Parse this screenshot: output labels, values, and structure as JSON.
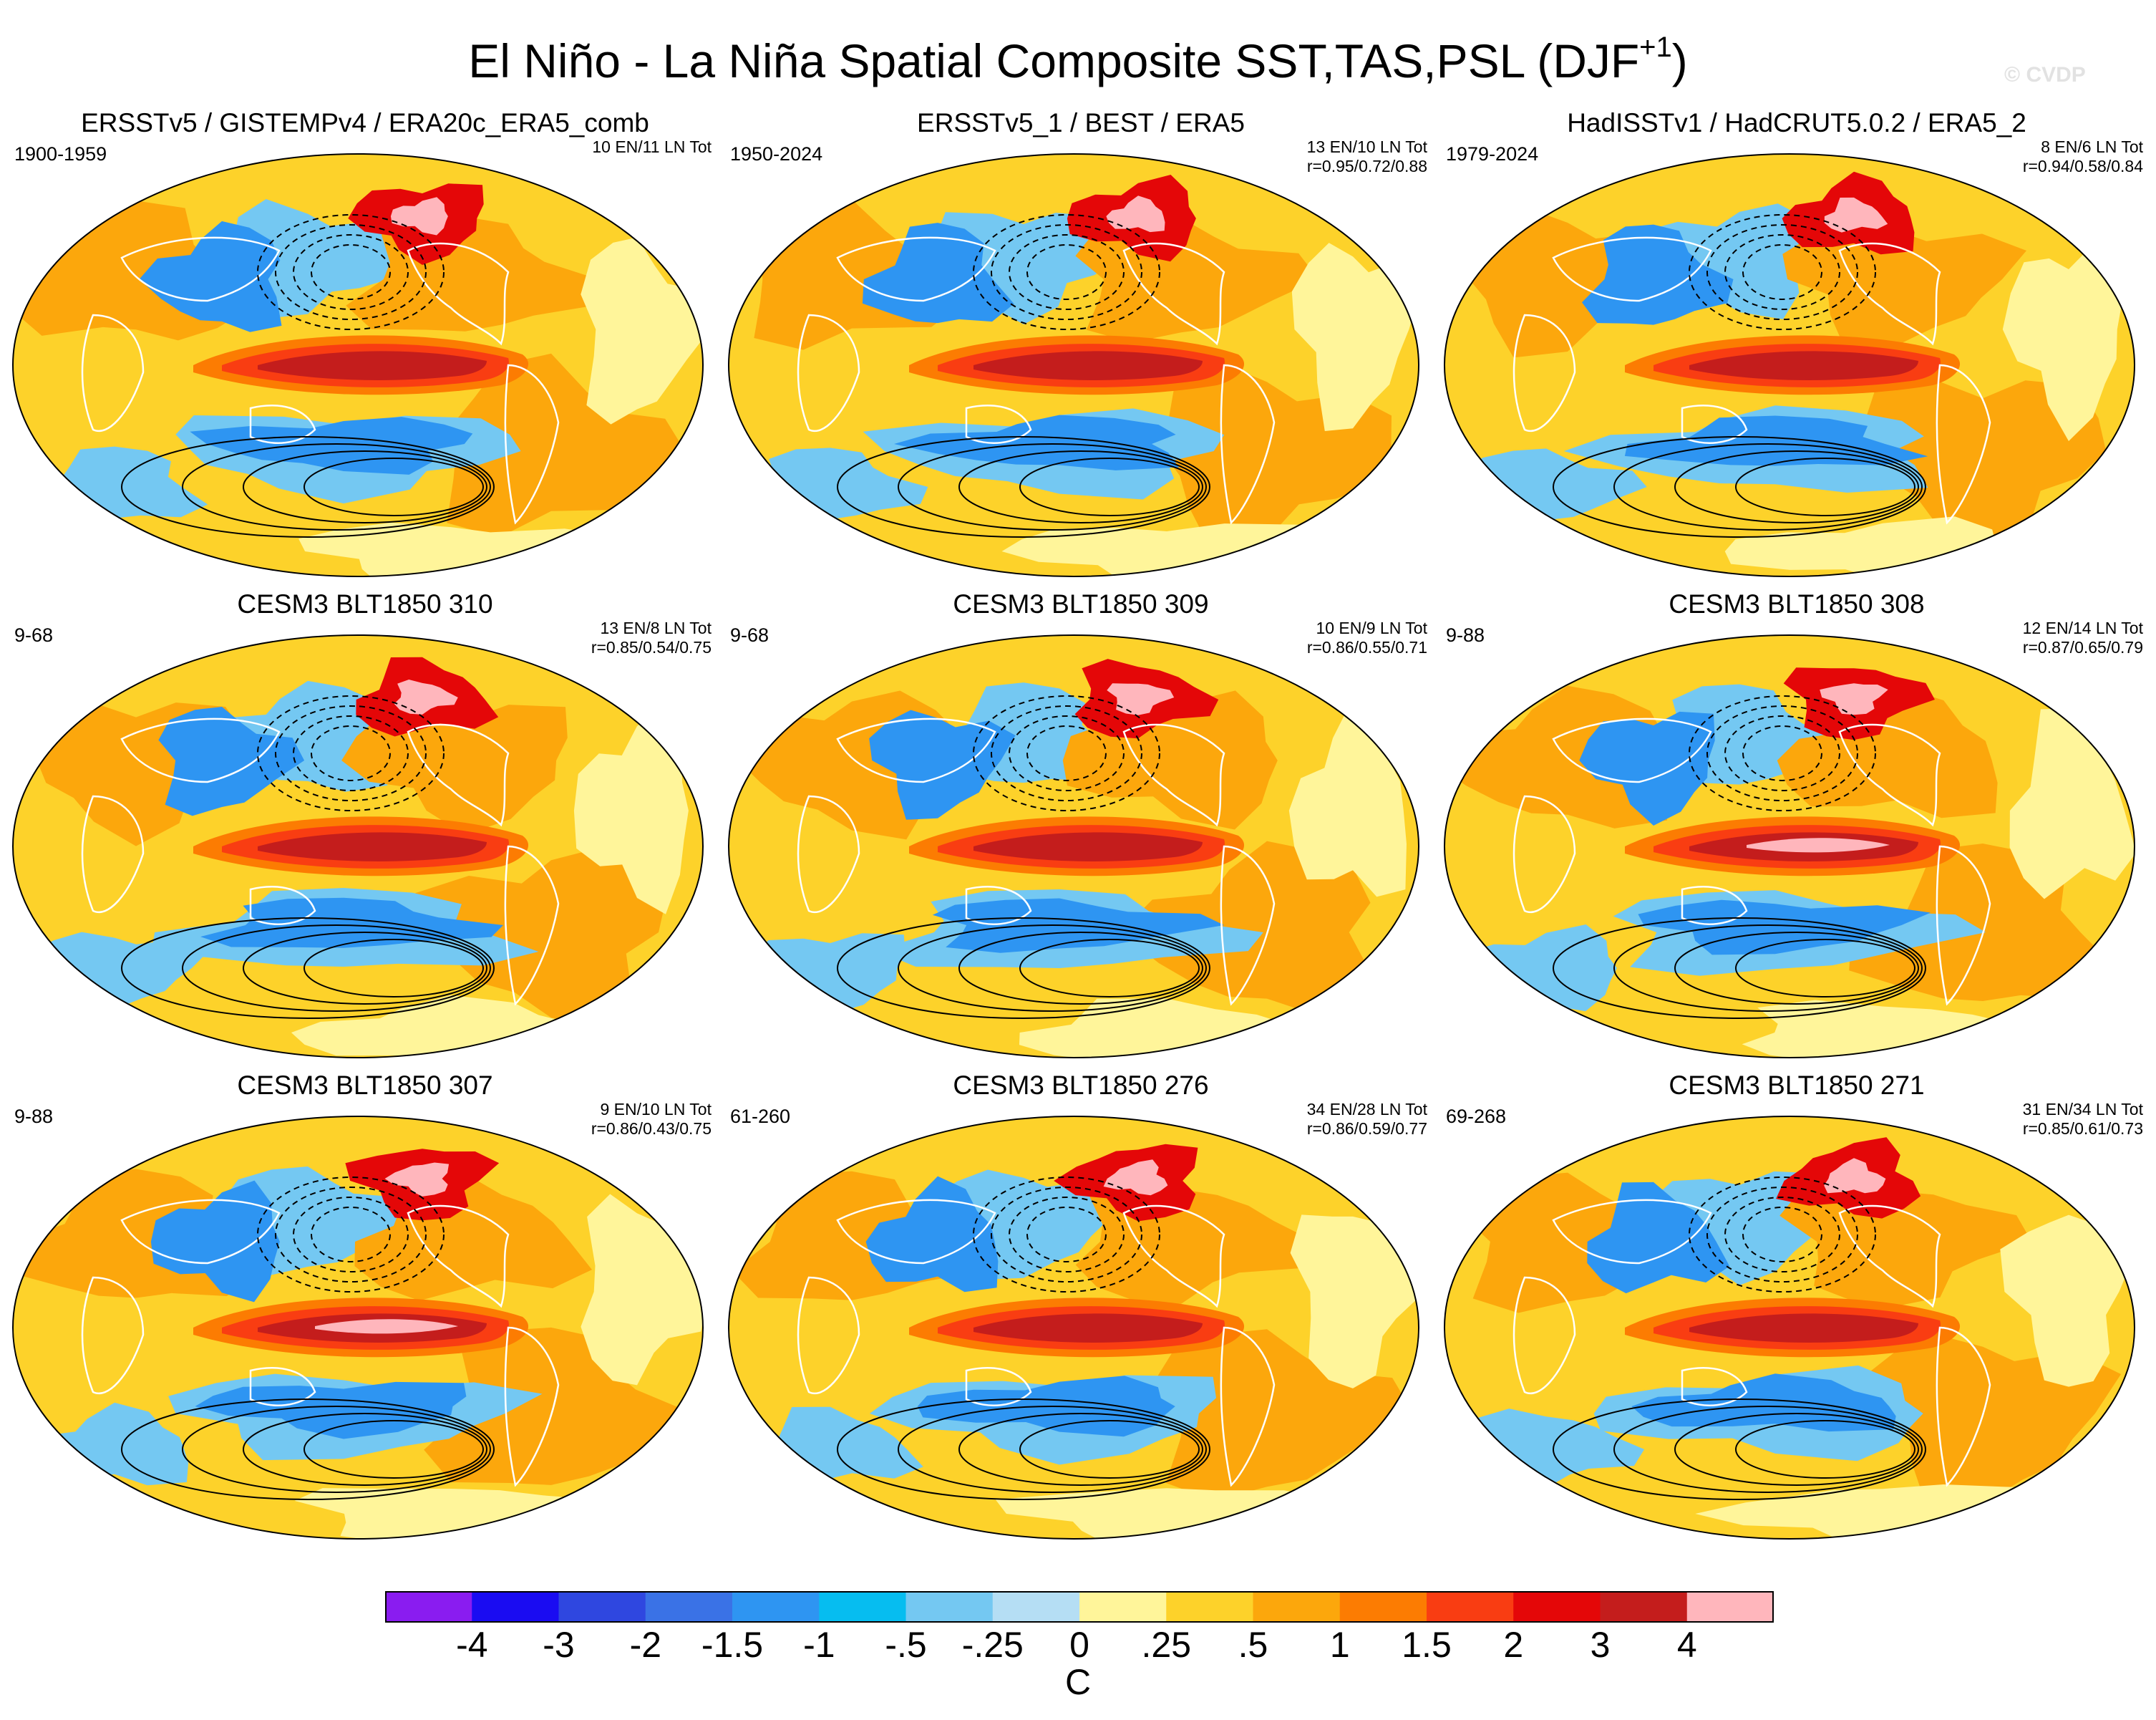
{
  "title": {
    "main": "El Niño - La Niña Spatial Composite SST,TAS,PSL (DJF",
    "superscript": "+1",
    "close": ")"
  },
  "watermark": "© CVDP",
  "panels": [
    {
      "title": "ERSSTv5 / GISTEMPv4 / ERA20c_ERA5_comb",
      "period": "1900-1959",
      "counts": "10 EN/11 LN Tot",
      "corr": "",
      "pattern": 0
    },
    {
      "title": "ERSSTv5_1 / BEST / ERA5",
      "period": "1950-2024",
      "counts": "13 EN/10 LN Tot",
      "corr": "r=0.95/0.72/0.88",
      "pattern": 1
    },
    {
      "title": "HadISSTv1 / HadCRUT5.0.2 / ERA5_2",
      "period": "1979-2024",
      "counts": "8 EN/6 LN Tot",
      "corr": "r=0.94/0.58/0.84",
      "pattern": 2
    },
    {
      "title": "CESM3 BLT1850 310",
      "period": "9-68",
      "counts": "13 EN/8 LN Tot",
      "corr": "r=0.85/0.54/0.75",
      "pattern": 3
    },
    {
      "title": "CESM3 BLT1850 309",
      "period": "9-68",
      "counts": "10 EN/9 LN Tot",
      "corr": "r=0.86/0.55/0.71",
      "pattern": 4
    },
    {
      "title": "CESM3 BLT1850 308",
      "period": "9-88",
      "counts": "12 EN/14 LN Tot",
      "corr": "r=0.87/0.65/0.79",
      "pattern": 5
    },
    {
      "title": "CESM3 BLT1850 307",
      "period": "9-88",
      "counts": "9 EN/10 LN Tot",
      "corr": "r=0.86/0.43/0.75",
      "pattern": 6
    },
    {
      "title": "CESM3 BLT1850 276",
      "period": "61-260",
      "counts": "34 EN/28 LN Tot",
      "corr": "r=0.86/0.59/0.77",
      "pattern": 7
    },
    {
      "title": "CESM3 BLT1850 271",
      "period": "69-268",
      "counts": "31 EN/34 LN Tot",
      "corr": "r=0.85/0.61/0.73",
      "pattern": 8
    }
  ],
  "colorbar": {
    "colors": [
      "#8a1cf0",
      "#1a0cf2",
      "#2f47e0",
      "#3a72e6",
      "#2e95f2",
      "#06bdf0",
      "#74c8f2",
      "#b5def4",
      "#fff59a",
      "#fdd22a",
      "#fca70c",
      "#fc7c02",
      "#f93d12",
      "#e40708",
      "#c41d1c",
      "#ffb6bc"
    ],
    "labels": [
      "-4",
      "-3",
      "-2",
      "-1.5",
      "-1",
      "-.5",
      "-.25",
      "0",
      ".25",
      ".5",
      "1",
      "1.5",
      "2",
      "3",
      "4"
    ],
    "units": "C"
  }
}
